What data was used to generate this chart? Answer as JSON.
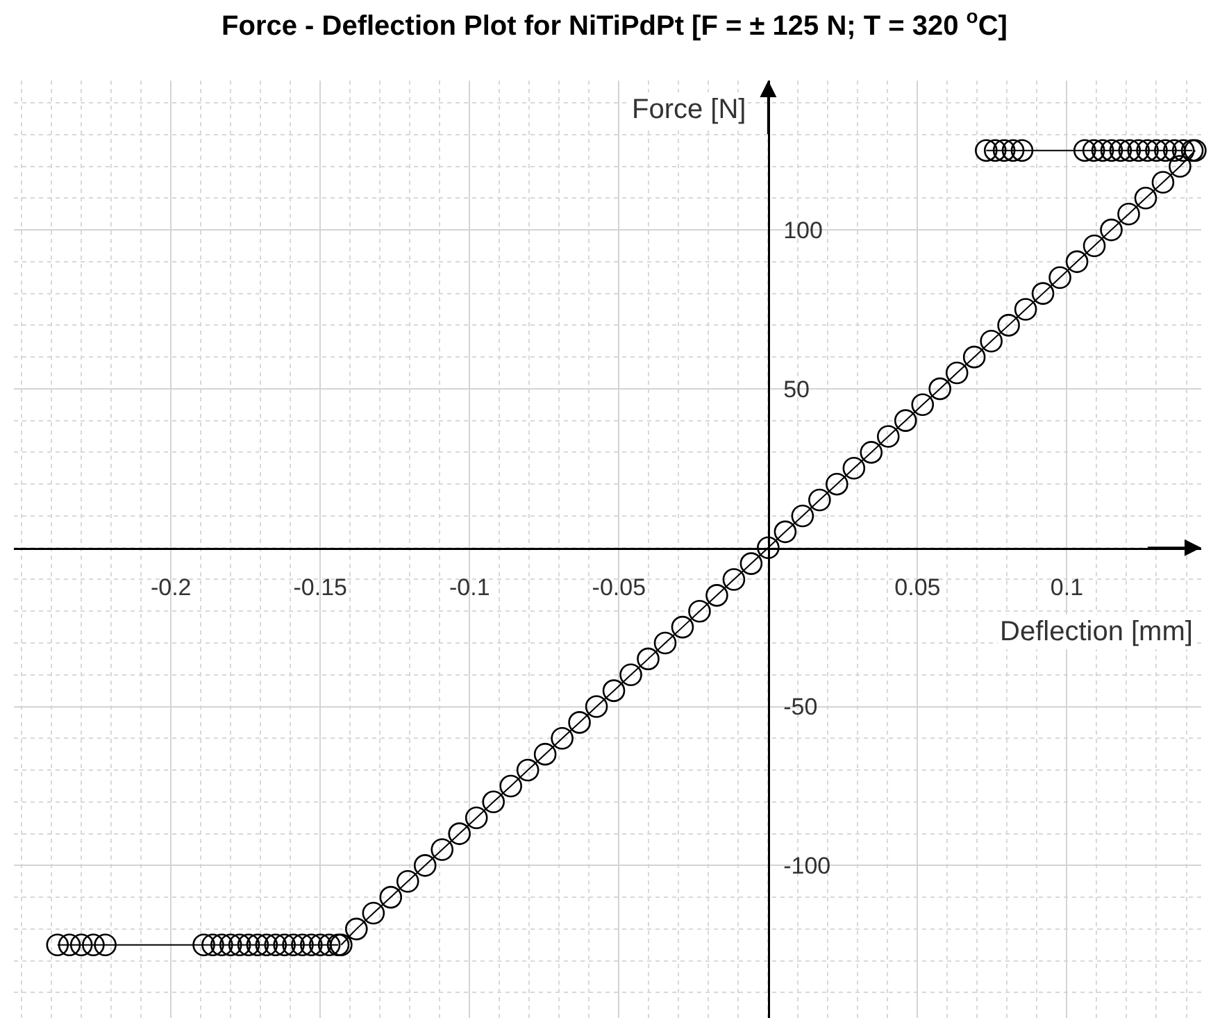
{
  "chart_data": {
    "type": "line",
    "title": "Force - Deflection Plot for NiTiPdPt [F = ± 125 N; T = 320 $^{o}$C]",
    "xlabel": "Deflection [mm]",
    "ylabel": "Force [N]",
    "xlim": [
      -0.2526,
      0.145
    ],
    "ylim": [
      -148,
      147
    ],
    "xticks": [
      -0.2,
      -0.15,
      -0.1,
      -0.05,
      0.05,
      0.1
    ],
    "yticks": [
      -100,
      -50,
      50,
      100
    ],
    "grid": true,
    "marker": "circle",
    "line_style": "solid",
    "series": [
      {
        "color": "#000000",
        "x": [
          -0.238,
          -0.234,
          -0.23,
          -0.226,
          -0.222,
          -0.189,
          -0.186,
          -0.183,
          -0.18,
          -0.177,
          -0.174,
          -0.171,
          -0.168,
          -0.165,
          -0.162,
          -0.159,
          -0.156,
          -0.153,
          -0.15,
          -0.147,
          -0.144
        ],
        "values": [
          -125,
          -125,
          -125,
          -125,
          -125,
          -125,
          -125,
          -125,
          -125,
          -125,
          -125,
          -125,
          -125,
          -125,
          -125,
          -125,
          -125,
          -125,
          -125,
          -125,
          -125
        ]
      },
      {
        "color": "#000000",
        "x": [
          -0.143,
          -0.1379,
          -0.1322,
          -0.1264,
          -0.1207,
          -0.1149,
          -0.1092,
          -0.1034,
          -0.0977,
          -0.092,
          -0.0862,
          -0.0805,
          -0.0747,
          -0.069,
          -0.0632,
          -0.0575,
          -0.0517,
          -0.046,
          -0.0402,
          -0.0345,
          -0.0287,
          -0.023,
          -0.0172,
          -0.0115,
          -0.0057,
          0,
          0.0057,
          0.0115,
          0.0172,
          0.023,
          0.0287,
          0.0345,
          0.0402,
          0.046,
          0.0517,
          0.0575,
          0.0632,
          0.069,
          0.0747,
          0.0805,
          0.0862,
          0.092,
          0.0977,
          0.1034,
          0.1092,
          0.1149,
          0.1207,
          0.1264,
          0.1322,
          0.1379,
          0.143
        ],
        "values": [
          -125,
          -120,
          -115,
          -110,
          -105,
          -100,
          -95,
          -90,
          -85,
          -80,
          -75,
          -70,
          -65,
          -60,
          -55,
          -50,
          -45,
          -40,
          -35,
          -30,
          -25,
          -20,
          -15,
          -10,
          -5,
          0,
          5,
          10,
          15,
          20,
          25,
          30,
          35,
          40,
          45,
          50,
          55,
          60,
          65,
          70,
          75,
          80,
          85,
          90,
          95,
          100,
          105,
          110,
          115,
          120,
          125
        ]
      },
      {
        "color": "#000000",
        "x": [
          0.073,
          0.076,
          0.079,
          0.082,
          0.085,
          0.106,
          0.109,
          0.112,
          0.115,
          0.118,
          0.121,
          0.124,
          0.127,
          0.13,
          0.133,
          0.136,
          0.139,
          0.142
        ],
        "values": [
          125,
          125,
          125,
          125,
          125,
          125,
          125,
          125,
          125,
          125,
          125,
          125,
          125,
          125,
          125,
          125,
          125,
          125
        ]
      }
    ]
  }
}
